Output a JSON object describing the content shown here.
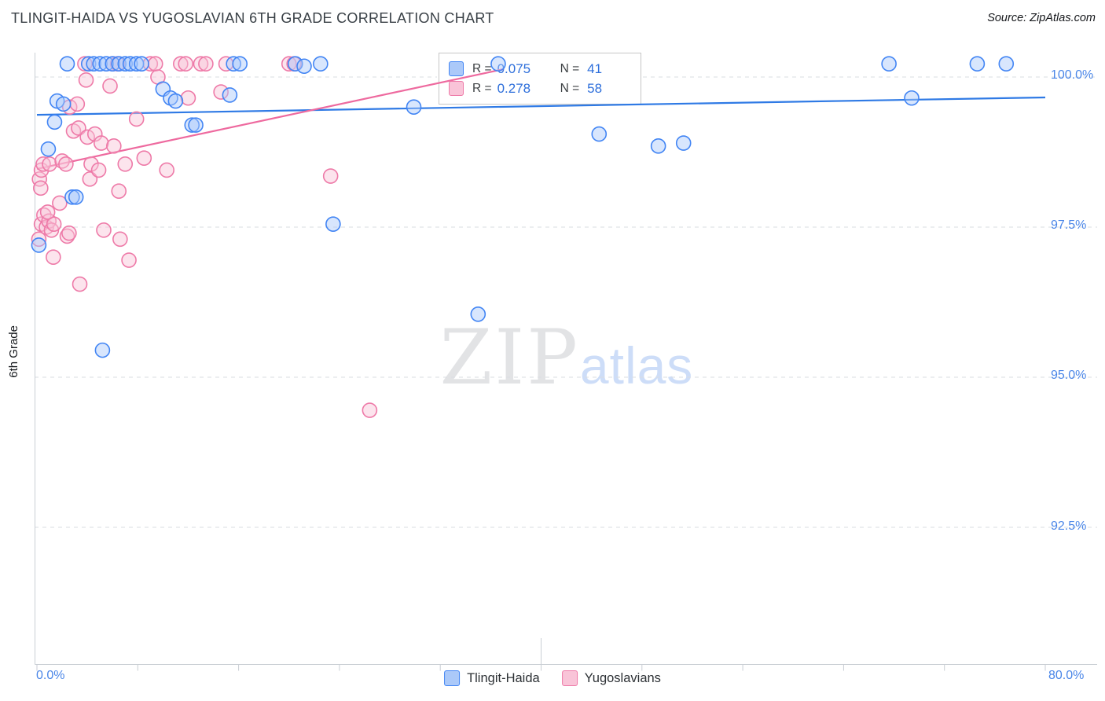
{
  "header": {
    "title": "TLINGIT-HAIDA VS YUGOSLAVIAN 6TH GRADE CORRELATION CHART",
    "source": "Source: ZipAtlas.com"
  },
  "watermark": {
    "zip": "ZIP",
    "atlas": "atlas"
  },
  "stats_legend": {
    "rows": [
      {
        "series": "Tlingit-Haida",
        "r_label": "R =",
        "r_value": "0.075",
        "n_label": "N =",
        "n_value": "41"
      },
      {
        "series": "Yugoslavians",
        "r_label": "R =",
        "r_value": "0.278",
        "n_label": "N =",
        "n_value": "58"
      }
    ]
  },
  "axes": {
    "y_label": "6th Grade",
    "y_tick_labels": [
      "100.0%",
      "97.5%",
      "95.0%",
      "92.5%"
    ],
    "x_tick_left": "0.0%",
    "x_tick_right": "80.0%"
  },
  "bottom_legend": {
    "items": [
      {
        "label": "Tlingit-Haida"
      },
      {
        "label": "Yugoslavians"
      }
    ]
  },
  "colors": {
    "blue_stroke": "#4285f4",
    "blue_fill": "#a8c7fa",
    "pink_stroke": "#ee7aa8",
    "pink_fill": "#f8c3d8",
    "blue_trend": "#2f7ae5",
    "pink_trend": "#ee6a9f",
    "grid": "#d9dde2",
    "axis": "#c9ced4",
    "tick_text": "#4a86e8"
  },
  "chart_data": {
    "type": "scatter",
    "xlim": [
      0,
      80
    ],
    "ylim": [
      91.0,
      100.45
    ],
    "x_ticks_pct": [
      0,
      8,
      16,
      24,
      32,
      40,
      48,
      56,
      64,
      72,
      80
    ],
    "y_gridlines": [
      100.0,
      97.5,
      95.0,
      92.5
    ],
    "series": [
      {
        "name": "Tlingit-Haida",
        "R": 0.075,
        "N": 41,
        "points": [
          [
            2.4,
            100.22
          ],
          [
            4.1,
            100.22
          ],
          [
            4.5,
            100.22
          ],
          [
            5.0,
            100.22
          ],
          [
            5.5,
            100.22
          ],
          [
            6.0,
            100.22
          ],
          [
            6.5,
            100.22
          ],
          [
            7.0,
            100.22
          ],
          [
            7.4,
            100.22
          ],
          [
            7.9,
            100.22
          ],
          [
            8.3,
            100.22
          ],
          [
            15.6,
            100.22
          ],
          [
            16.1,
            100.22
          ],
          [
            20.5,
            100.22
          ],
          [
            21.2,
            100.18
          ],
          [
            22.5,
            100.22
          ],
          [
            36.6,
            100.22
          ],
          [
            67.6,
            100.22
          ],
          [
            74.6,
            100.22
          ],
          [
            76.9,
            100.22
          ],
          [
            0.15,
            97.2
          ],
          [
            0.9,
            98.8
          ],
          [
            1.4,
            99.25
          ],
          [
            1.6,
            99.6
          ],
          [
            2.1,
            99.55
          ],
          [
            2.8,
            98.0
          ],
          [
            3.1,
            98.0
          ],
          [
            5.2,
            95.45
          ],
          [
            10.0,
            99.8
          ],
          [
            10.6,
            99.65
          ],
          [
            11.0,
            99.6
          ],
          [
            12.3,
            99.2
          ],
          [
            12.6,
            99.2
          ],
          [
            15.3,
            99.7
          ],
          [
            23.5,
            97.55
          ],
          [
            29.9,
            99.5
          ],
          [
            35.0,
            96.05
          ],
          [
            44.6,
            99.05
          ],
          [
            49.3,
            98.85
          ],
          [
            51.3,
            98.9
          ],
          [
            69.4,
            99.65
          ]
        ]
      },
      {
        "name": "Yugoslavians",
        "R": 0.278,
        "N": 58,
        "points": [
          [
            3.8,
            100.22
          ],
          [
            6.0,
            100.22
          ],
          [
            6.4,
            100.22
          ],
          [
            9.0,
            100.22
          ],
          [
            9.4,
            100.22
          ],
          [
            11.4,
            100.22
          ],
          [
            11.8,
            100.22
          ],
          [
            13.0,
            100.22
          ],
          [
            13.4,
            100.22
          ],
          [
            15.0,
            100.22
          ],
          [
            20.0,
            100.22
          ],
          [
            20.4,
            100.22
          ],
          [
            3.9,
            99.95
          ],
          [
            5.8,
            99.85
          ],
          [
            9.6,
            100.0
          ],
          [
            14.6,
            99.75
          ],
          [
            2.6,
            99.5
          ],
          [
            3.2,
            99.55
          ],
          [
            2.9,
            99.1
          ],
          [
            3.3,
            99.15
          ],
          [
            4.0,
            99.0
          ],
          [
            4.6,
            99.05
          ],
          [
            5.1,
            98.9
          ],
          [
            6.1,
            98.85
          ],
          [
            7.9,
            99.3
          ],
          [
            12.0,
            99.65
          ],
          [
            0.2,
            98.3
          ],
          [
            0.35,
            98.45
          ],
          [
            0.3,
            98.15
          ],
          [
            0.5,
            98.55
          ],
          [
            1.0,
            98.55
          ],
          [
            2.0,
            98.6
          ],
          [
            2.3,
            98.55
          ],
          [
            4.3,
            98.55
          ],
          [
            4.2,
            98.3
          ],
          [
            4.9,
            98.45
          ],
          [
            6.5,
            98.1
          ],
          [
            7.0,
            98.55
          ],
          [
            8.5,
            98.65
          ],
          [
            10.3,
            98.45
          ],
          [
            23.3,
            98.35
          ],
          [
            0.15,
            97.3
          ],
          [
            0.35,
            97.55
          ],
          [
            0.55,
            97.7
          ],
          [
            0.75,
            97.5
          ],
          [
            0.95,
            97.6
          ],
          [
            1.15,
            97.45
          ],
          [
            1.35,
            97.55
          ],
          [
            0.85,
            97.75
          ],
          [
            1.8,
            97.9
          ],
          [
            2.4,
            97.35
          ],
          [
            2.55,
            97.4
          ],
          [
            5.3,
            97.45
          ],
          [
            6.6,
            97.3
          ],
          [
            1.3,
            97.0
          ],
          [
            7.3,
            96.95
          ],
          [
            3.4,
            96.55
          ],
          [
            26.4,
            94.45
          ]
        ]
      }
    ],
    "trendlines": [
      {
        "series": "Tlingit-Haida",
        "x1": 0,
        "y1": 99.37,
        "x2": 80,
        "y2": 99.66
      },
      {
        "series": "Yugoslavians",
        "x1": 0,
        "y1": 98.47,
        "x2": 37,
        "y2": 100.13
      }
    ]
  }
}
